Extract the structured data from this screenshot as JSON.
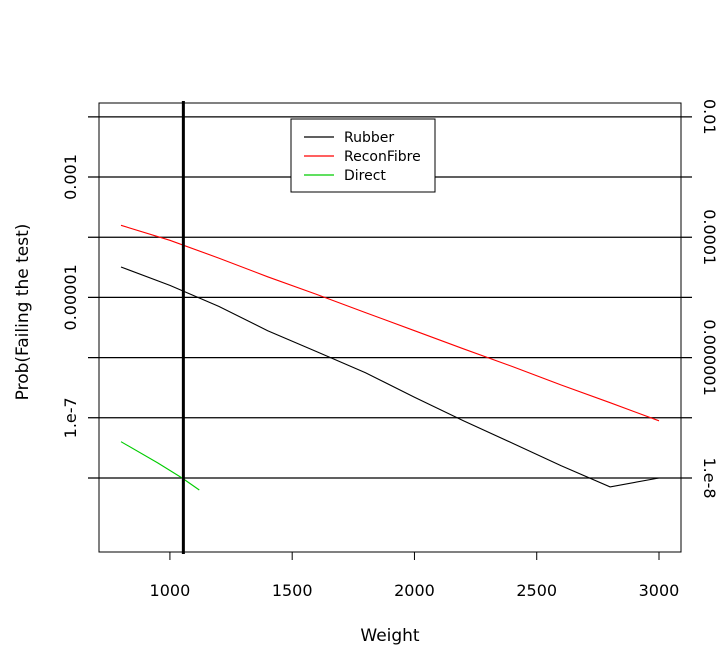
{
  "chart_data": {
    "type": "line",
    "title": "",
    "xlabel": "Weight",
    "ylabel": "Prob(Failing the test)",
    "xlim": [
      710,
      3090
    ],
    "ylog": true,
    "ylim": [
      1e-09,
      0.01
    ],
    "xticks": [
      {
        "value": 1000,
        "label": "1000"
      },
      {
        "value": 1500,
        "label": "1500"
      },
      {
        "value": 2000,
        "label": "2000"
      },
      {
        "value": 2500,
        "label": "2500"
      },
      {
        "value": 3000,
        "label": "3000"
      }
    ],
    "yticks_left": [
      {
        "value": 0.001,
        "label": "0.001"
      },
      {
        "value": 1e-05,
        "label": "0.00001"
      },
      {
        "value": 1e-07,
        "label": "1.e-7"
      }
    ],
    "yticks_right": [
      {
        "value": 0.01,
        "label": "0.01"
      },
      {
        "value": 0.0001,
        "label": "0.0001"
      },
      {
        "value": 1e-06,
        "label": "0.000001"
      },
      {
        "value": 1e-08,
        "label": "1.e-8"
      }
    ],
    "hlines": [
      0.01,
      0.001,
      0.0001,
      1e-05,
      1e-06,
      1e-07,
      1e-08
    ],
    "vline": {
      "x": 1055,
      "color": "#000000"
    },
    "legend": {
      "position": "top-center"
    },
    "grid": false,
    "series": [
      {
        "name": "Rubber",
        "color": "#000000",
        "points": [
          [
            800,
            3.2e-05
          ],
          [
            1000,
            1.58e-05
          ],
          [
            1200,
            7.1e-06
          ],
          [
            1400,
            2.8e-06
          ],
          [
            1600,
            1.26e-06
          ],
          [
            1800,
            5.6e-07
          ],
          [
            2000,
            2.2e-07
          ],
          [
            2200,
            8.9e-08
          ],
          [
            2400,
            3.8e-08
          ],
          [
            2600,
            1.6e-08
          ],
          [
            2800,
            7.1e-09
          ],
          [
            3000,
            1e-08
          ]
        ]
      },
      {
        "name": "ReconFibre",
        "color": "#ff0000",
        "points": [
          [
            800,
            0.000158
          ],
          [
            1000,
            8.9e-05
          ],
          [
            1200,
            4.5e-05
          ],
          [
            1400,
            2.2e-05
          ],
          [
            1600,
            1.12e-05
          ],
          [
            1800,
            5.6e-06
          ],
          [
            2000,
            2.8e-06
          ],
          [
            2200,
            1.4e-06
          ],
          [
            2400,
            7.1e-07
          ],
          [
            2600,
            3.5e-07
          ],
          [
            2800,
            1.78e-07
          ],
          [
            3000,
            8.9e-08
          ]
        ]
      },
      {
        "name": "Direct",
        "color": "#00cc00",
        "points": [
          [
            800,
            4e-08
          ],
          [
            950,
            1.78e-08
          ],
          [
            1050,
            1e-08
          ],
          [
            1120,
            6.3e-09
          ]
        ]
      }
    ]
  }
}
